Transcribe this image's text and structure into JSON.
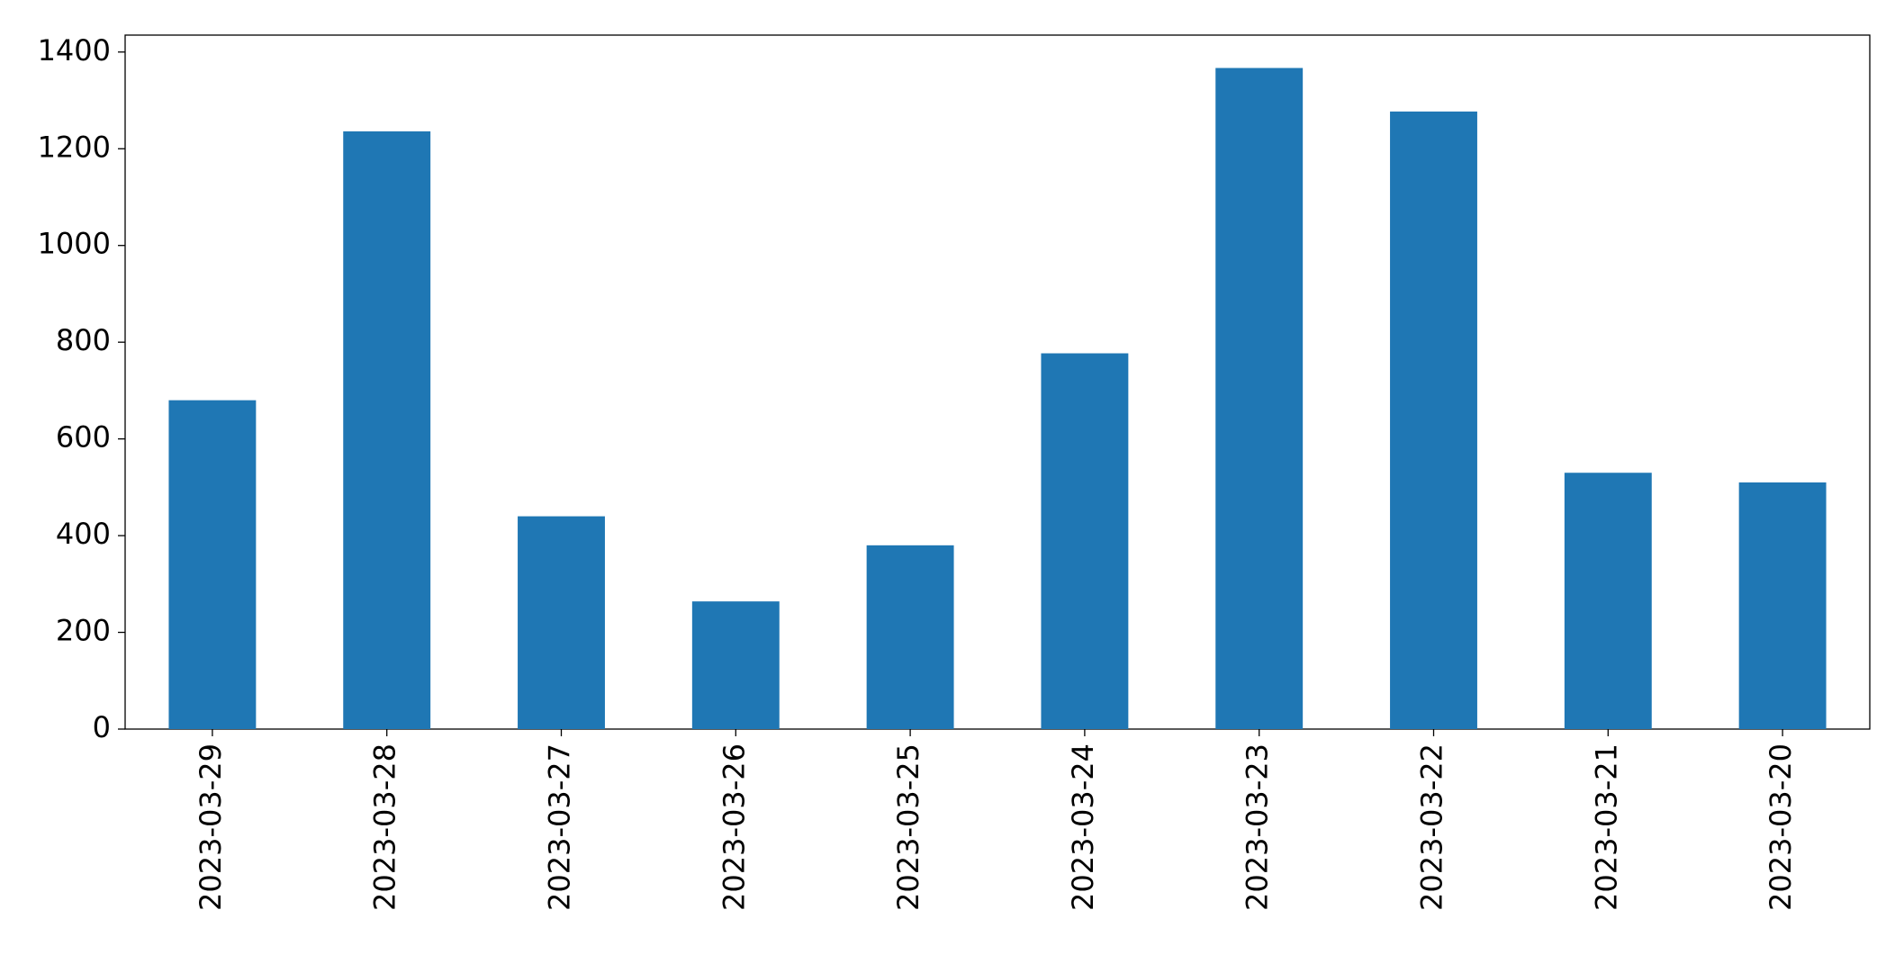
{
  "chart_data": {
    "type": "bar",
    "categories": [
      "2023-03-29",
      "2023-03-28",
      "2023-03-27",
      "2023-03-26",
      "2023-03-25",
      "2023-03-24",
      "2023-03-23",
      "2023-03-22",
      "2023-03-21",
      "2023-03-20"
    ],
    "values": [
      680,
      1236,
      440,
      264,
      380,
      777,
      1367,
      1277,
      530,
      510
    ],
    "color": "#1f77b4",
    "ylim": [
      0,
      1435
    ],
    "yticks": [
      0,
      200,
      400,
      600,
      800,
      1000,
      1200,
      1400
    ],
    "grid": false
  }
}
